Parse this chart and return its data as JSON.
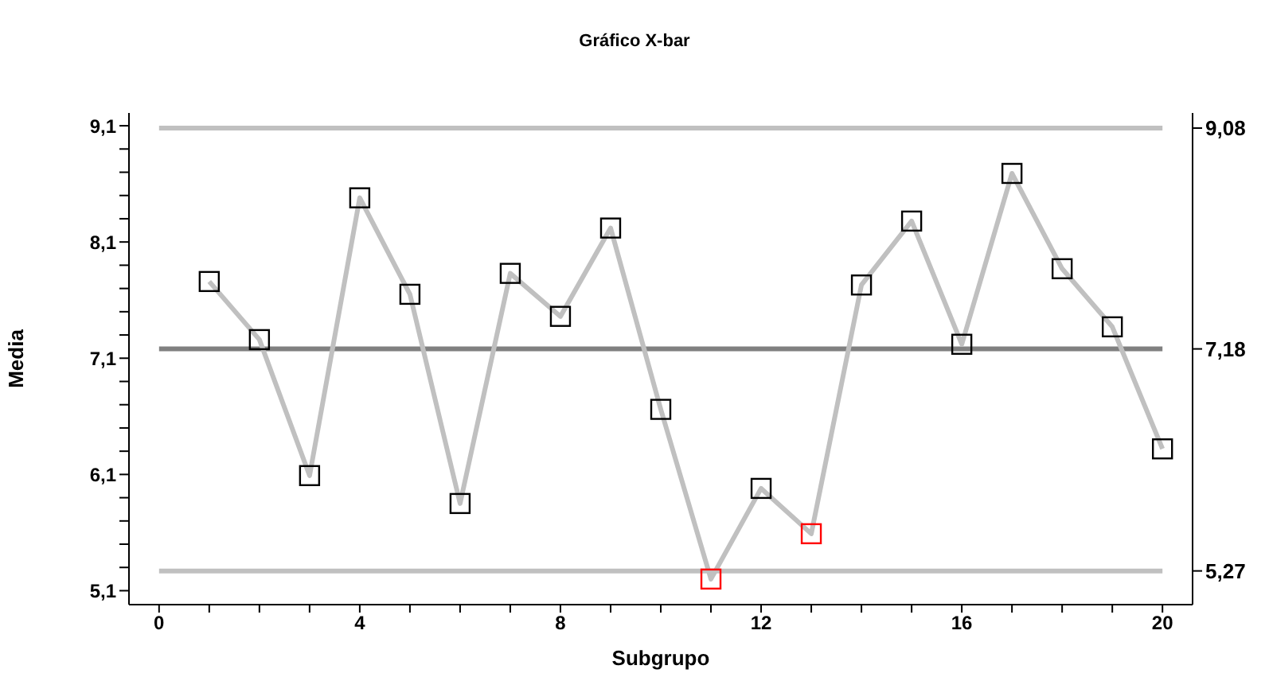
{
  "chart_data": {
    "type": "line",
    "title": "Gráfico X-bar",
    "xlabel": "Subgrupo",
    "ylabel": "Media",
    "x": [
      1,
      2,
      3,
      4,
      5,
      6,
      7,
      8,
      9,
      10,
      11,
      12,
      13,
      14,
      15,
      16,
      17,
      18,
      19,
      20
    ],
    "series": [
      {
        "color": "#c0c0c0",
        "colors": [
          "#000000",
          "#000000",
          "#000000",
          "#000000",
          "#000000",
          "#000000",
          "#000000",
          "#000000",
          "#000000",
          "#000000",
          "#ff0000",
          "#000000",
          "#ff0000",
          "#000000",
          "#000000",
          "#000000",
          "#000000",
          "#000000",
          "#000000",
          "#000000"
        ],
        "values": [
          7.76,
          7.26,
          6.09,
          8.48,
          7.65,
          5.85,
          7.83,
          7.46,
          8.22,
          6.66,
          5.2,
          5.98,
          5.59,
          7.73,
          8.28,
          7.22,
          8.69,
          7.87,
          7.37,
          6.32
        ]
      }
    ],
    "xlim": [
      -0.6,
      20.6
    ],
    "xticks": [
      0,
      {
        "value": 1,
        "label": null
      },
      {
        "value": 2,
        "label": null
      },
      {
        "value": 3,
        "label": null
      },
      4,
      {
        "value": 5,
        "label": null
      },
      {
        "value": 6,
        "label": null
      },
      {
        "value": 7,
        "label": null
      },
      8,
      {
        "value": 9,
        "label": null
      },
      {
        "value": 10,
        "label": null
      },
      {
        "value": 11,
        "label": null
      },
      12,
      {
        "value": 13,
        "label": null
      },
      {
        "value": 14,
        "label": null
      },
      {
        "value": 15,
        "label": null
      },
      16,
      {
        "value": 17,
        "label": null
      },
      {
        "value": 18,
        "label": null
      },
      {
        "value": 19,
        "label": null
      },
      20
    ],
    "ylim": [
      4.98,
      9.21
    ],
    "yticks": [
      {
        "value": 5.1,
        "label": "5,1"
      },
      {
        "value": 5.3,
        "label": null
      },
      {
        "value": 5.5,
        "label": null
      },
      {
        "value": 5.7,
        "label": null
      },
      {
        "value": 5.9,
        "label": null
      },
      {
        "value": 6.1,
        "label": "6,1"
      },
      {
        "value": 6.3,
        "label": null
      },
      {
        "value": 6.5,
        "label": null
      },
      {
        "value": 6.7,
        "label": null
      },
      {
        "value": 6.9,
        "label": null
      },
      {
        "value": 7.1,
        "label": "7,1"
      },
      {
        "value": 7.3,
        "label": null
      },
      {
        "value": 7.5,
        "label": null
      },
      {
        "value": 7.7,
        "label": null
      },
      {
        "value": 7.9,
        "label": null
      },
      {
        "value": 8.1,
        "label": "8,1"
      },
      {
        "value": 8.3,
        "label": null
      },
      {
        "value": 8.5,
        "label": null
      },
      {
        "value": 8.7,
        "label": null
      },
      {
        "value": 8.9,
        "label": null
      },
      {
        "value": 9.1,
        "label": "9,1"
      }
    ],
    "y2lim": [
      4.98,
      9.21
    ],
    "y2ticks": [
      {
        "value": 5.27,
        "label": "5,27"
      },
      {
        "value": 7.18,
        "label": "7,18"
      },
      {
        "value": 9.08,
        "label": "9,08"
      }
    ],
    "ref_lines": [
      {
        "axis": "y",
        "value": 9.08,
        "color": "#c0c0c0"
      },
      {
        "axis": "y",
        "value": 7.18,
        "color": "#808080"
      },
      {
        "axis": "y",
        "value": 5.27,
        "color": "#c0c0c0"
      }
    ],
    "marker": "square",
    "grid": false
  }
}
